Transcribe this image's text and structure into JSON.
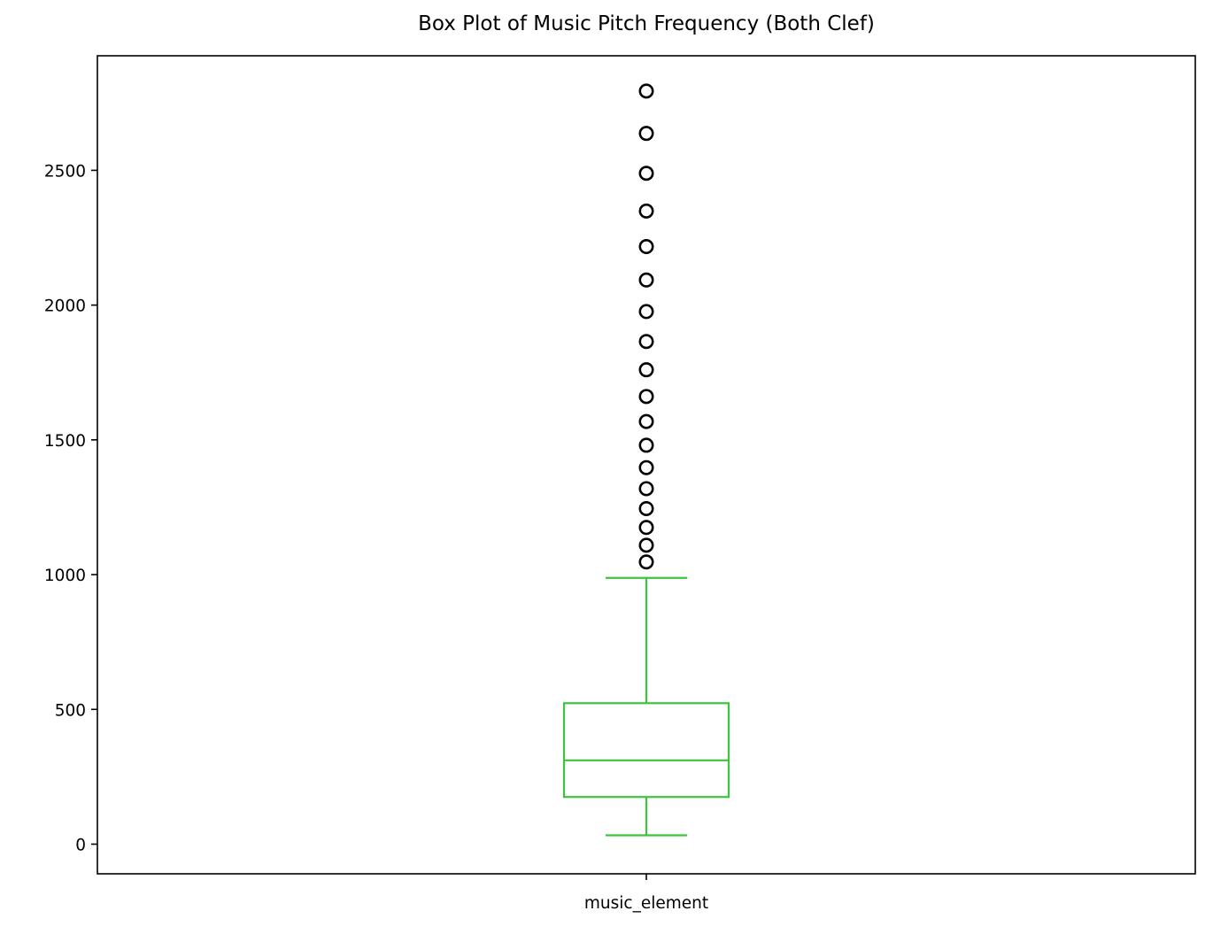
{
  "chart_data": {
    "type": "box",
    "title": "Box Plot of Music Pitch Frequency (Both Clef)",
    "xlabel": "",
    "ylabel": "",
    "categories": [
      "music_element"
    ],
    "ylim": [
      -110,
      2925
    ],
    "yticks": [
      0,
      500,
      1000,
      1500,
      2000,
      2500
    ],
    "grid": false,
    "legend": "none",
    "box": {
      "whisker_low": 33,
      "q1": 175,
      "median": 311,
      "q3": 523,
      "whisker_high": 988
    },
    "outliers": [
      1047,
      1109,
      1175,
      1245,
      1319,
      1397,
      1480,
      1568,
      1661,
      1760,
      1865,
      1976,
      2093,
      2217,
      2349,
      2489,
      2637,
      2794
    ],
    "colors": {
      "box": "#3cc43c",
      "outlier_edge": "#000000",
      "axes": "#000000"
    }
  }
}
